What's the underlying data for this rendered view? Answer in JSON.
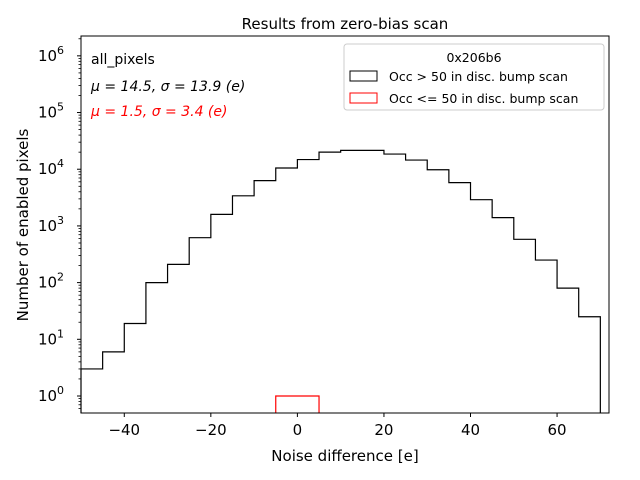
{
  "chart_data": {
    "type": "histogram",
    "title": "Results from zero-bias scan",
    "xlabel": "Noise difference [e]",
    "ylabel": "Number of enabled pixels",
    "xlim": [
      -50,
      72
    ],
    "ylim_log10": [
      -0.3,
      6.35
    ],
    "y_scale": "log",
    "x_ticks": [
      -40,
      -20,
      0,
      20,
      40,
      60
    ],
    "x_tick_labels": [
      "−40",
      "−20",
      "0",
      "20",
      "40",
      "60"
    ],
    "y_ticks_exp": [
      0,
      1,
      2,
      3,
      4,
      5,
      6
    ],
    "y_tick_base": "10",
    "annotations": {
      "group": "all_pixels",
      "stats_black": {
        "mu": "μ = 14.5, ",
        "sigma": "σ = 13.9 (e)"
      },
      "stats_red": {
        "mu": "μ = 1.5, ",
        "sigma": "σ = 3.4 (e)"
      }
    },
    "legend": {
      "title": "0x206b6",
      "location": "top-right",
      "entries": [
        "Occ > 50 in disc. bump scan",
        "Occ <= 50 in disc. bump scan"
      ]
    },
    "series": [
      {
        "name": "Occ > 50 in disc. bump scan",
        "color": "#000000",
        "bins": [
          -50,
          -45,
          -40,
          -35,
          -30,
          -25,
          -20,
          -15,
          -10,
          -5,
          0,
          5,
          10,
          15,
          20,
          25,
          30,
          35,
          40,
          45,
          50,
          55,
          60,
          65,
          70
        ],
        "counts": [
          3,
          6,
          19,
          100,
          210,
          620,
          1600,
          3400,
          6300,
          10500,
          14800,
          20000,
          21500,
          21500,
          18500,
          14500,
          9800,
          5800,
          2900,
          1400,
          580,
          250,
          80,
          25
        ]
      },
      {
        "name": "Occ <= 50 in disc. bump scan",
        "color": "#ff0000",
        "bins": [
          -5,
          5
        ],
        "counts": [
          1
        ]
      }
    ]
  }
}
